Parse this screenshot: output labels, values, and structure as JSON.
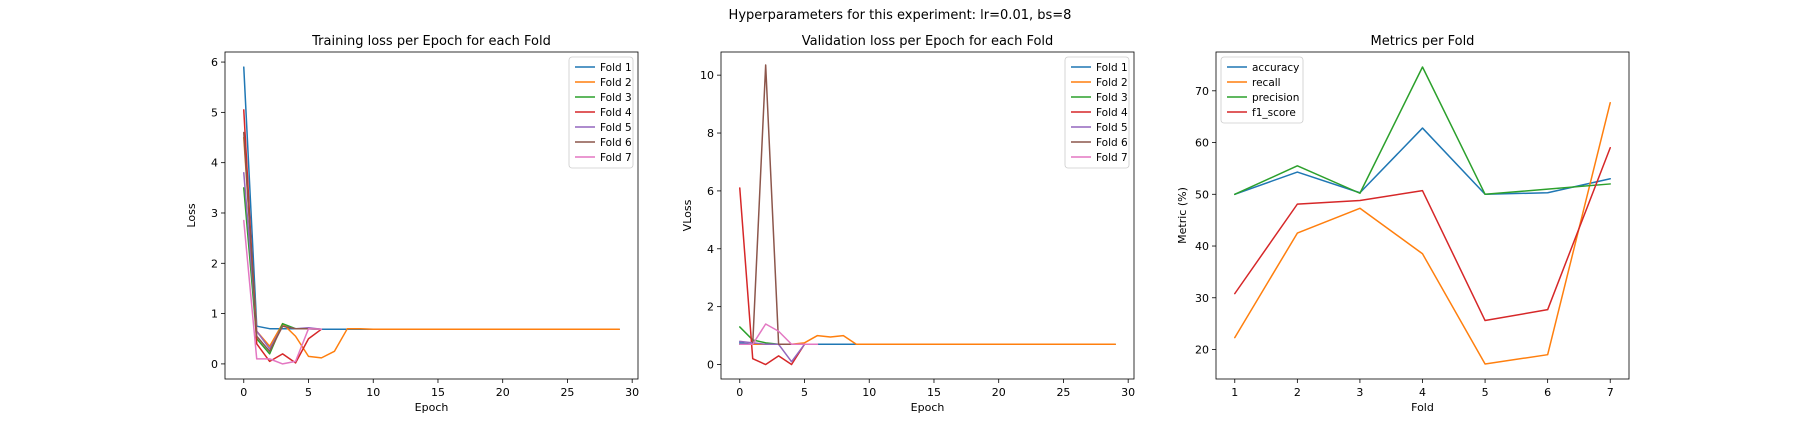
{
  "suptitle": "Hyperparameters for this experiment: lr=0.01, bs=8",
  "colors": {
    "c1": "#1f77b4",
    "c2": "#ff7f0e",
    "c3": "#2ca02c",
    "c4": "#d62728",
    "c5": "#9467bd",
    "c6": "#8c564b",
    "c7": "#e377c2"
  },
  "chart_data": [
    {
      "type": "line",
      "title": "Training loss per Epoch for each Fold",
      "xlabel": "Epoch",
      "ylabel": "Loss",
      "xlim": [
        -1.45,
        30.45
      ],
      "ylim": [
        -0.3,
        6.2
      ],
      "xticks": [
        0,
        5,
        10,
        15,
        20,
        25,
        30
      ],
      "yticks": [
        0,
        1,
        2,
        3,
        4,
        5,
        6
      ],
      "legend": "top-right",
      "series": [
        {
          "name": "Fold 1",
          "color": "#1f77b4",
          "x": [
            0,
            1,
            2,
            3,
            4,
            5,
            6,
            7,
            8,
            9,
            10,
            11,
            12,
            13,
            14,
            15,
            16,
            17,
            18,
            19,
            20,
            21,
            22,
            23,
            24,
            25,
            26,
            27,
            28,
            29
          ],
          "y": [
            5.9,
            0.75,
            0.7,
            0.7,
            0.7,
            0.7,
            0.69,
            0.69,
            0.69,
            0.69,
            0.69,
            0.69,
            0.69,
            0.69,
            0.69,
            0.69,
            0.69,
            0.69,
            0.69,
            0.69,
            0.69,
            0.69,
            0.69,
            0.69,
            0.69,
            0.69,
            0.69,
            0.69,
            0.69,
            0.69
          ]
        },
        {
          "name": "Fold 2",
          "color": "#ff7f0e",
          "x": [
            0,
            1,
            2,
            3,
            4,
            5,
            6,
            7,
            8,
            9,
            10,
            11,
            12,
            13,
            14,
            15,
            16,
            17,
            18,
            19,
            20,
            21,
            22,
            23,
            24,
            25,
            26,
            27,
            28,
            29
          ],
          "y": [
            4.5,
            0.65,
            0.35,
            0.8,
            0.55,
            0.15,
            0.12,
            0.25,
            0.7,
            0.7,
            0.69,
            0.69,
            0.69,
            0.69,
            0.69,
            0.69,
            0.69,
            0.69,
            0.69,
            0.69,
            0.69,
            0.69,
            0.69,
            0.69,
            0.69,
            0.69,
            0.69,
            0.69,
            0.69,
            0.69
          ]
        },
        {
          "name": "Fold 3",
          "color": "#2ca02c",
          "x": [
            0,
            1,
            2,
            3,
            4,
            5,
            6
          ],
          "y": [
            3.5,
            0.5,
            0.2,
            0.8,
            0.7,
            0.7,
            0.69
          ]
        },
        {
          "name": "Fold 4",
          "color": "#d62728",
          "x": [
            0,
            1,
            2,
            3,
            4,
            5,
            6
          ],
          "y": [
            5.05,
            0.4,
            0.05,
            0.2,
            0.02,
            0.5,
            0.69
          ]
        },
        {
          "name": "Fold 5",
          "color": "#9467bd",
          "x": [
            0,
            1,
            2,
            3,
            4,
            5,
            6
          ],
          "y": [
            3.8,
            0.65,
            0.3,
            0.75,
            0.7,
            0.72,
            0.69
          ]
        },
        {
          "name": "Fold 6",
          "color": "#8c564b",
          "x": [
            0,
            1,
            2,
            3,
            4,
            5,
            6
          ],
          "y": [
            4.6,
            0.55,
            0.25,
            0.75,
            0.7,
            0.7,
            0.69
          ]
        },
        {
          "name": "Fold 7",
          "color": "#e377c2",
          "x": [
            0,
            1,
            2,
            3,
            4,
            5,
            6
          ],
          "y": [
            2.85,
            0.1,
            0.1,
            0.0,
            0.05,
            0.7,
            0.69
          ]
        }
      ]
    },
    {
      "type": "line",
      "title": "Validation loss per Epoch for each Fold",
      "xlabel": "Epoch",
      "ylabel": "VLoss",
      "xlim": [
        -1.45,
        30.45
      ],
      "ylim": [
        -0.5,
        10.8
      ],
      "xticks": [
        0,
        5,
        10,
        15,
        20,
        25,
        30
      ],
      "yticks": [
        0,
        2,
        4,
        6,
        8,
        10
      ],
      "legend": "top-right",
      "series": [
        {
          "name": "Fold 1",
          "color": "#1f77b4",
          "x": [
            0,
            1,
            2,
            3,
            4,
            5,
            6,
            7,
            8,
            9,
            10,
            11,
            12,
            13,
            14,
            15,
            16,
            17,
            18,
            19,
            20,
            21,
            22,
            23,
            24,
            25,
            26,
            27,
            28,
            29
          ],
          "y": [
            0.75,
            0.7,
            0.7,
            0.7,
            0.7,
            0.7,
            0.7,
            0.7,
            0.7,
            0.7,
            0.7,
            0.7,
            0.7,
            0.7,
            0.7,
            0.7,
            0.7,
            0.7,
            0.7,
            0.7,
            0.7,
            0.7,
            0.7,
            0.7,
            0.7,
            0.7,
            0.7,
            0.7,
            0.7,
            0.7
          ]
        },
        {
          "name": "Fold 2",
          "color": "#ff7f0e",
          "x": [
            0,
            1,
            2,
            3,
            4,
            5,
            6,
            7,
            8,
            9,
            10,
            11,
            12,
            13,
            14,
            15,
            16,
            17,
            18,
            19,
            20,
            21,
            22,
            23,
            24,
            25,
            26,
            27,
            28,
            29
          ],
          "y": [
            0.7,
            0.7,
            0.7,
            0.7,
            0.7,
            0.75,
            1.0,
            0.95,
            1.0,
            0.7,
            0.7,
            0.7,
            0.7,
            0.7,
            0.7,
            0.7,
            0.7,
            0.7,
            0.7,
            0.7,
            0.7,
            0.7,
            0.7,
            0.7,
            0.7,
            0.7,
            0.7,
            0.7,
            0.7,
            0.7
          ]
        },
        {
          "name": "Fold 3",
          "color": "#2ca02c",
          "x": [
            0,
            1,
            2,
            3,
            4,
            5,
            6
          ],
          "y": [
            1.3,
            0.85,
            0.75,
            0.7,
            0.7,
            0.7,
            0.7
          ]
        },
        {
          "name": "Fold 4",
          "color": "#d62728",
          "x": [
            0,
            1,
            2,
            3,
            4,
            5,
            6
          ],
          "y": [
            6.1,
            0.2,
            0.0,
            0.3,
            0.0,
            0.7,
            0.7
          ]
        },
        {
          "name": "Fold 5",
          "color": "#9467bd",
          "x": [
            0,
            1,
            2,
            3,
            4,
            5,
            6
          ],
          "y": [
            0.8,
            0.75,
            0.7,
            0.7,
            0.1,
            0.7,
            0.7
          ]
        },
        {
          "name": "Fold 6",
          "color": "#8c564b",
          "x": [
            0,
            1,
            2,
            3,
            4,
            5,
            6
          ],
          "y": [
            0.7,
            0.7,
            10.35,
            0.7,
            0.7,
            0.7,
            0.7
          ]
        },
        {
          "name": "Fold 7",
          "color": "#e377c2",
          "x": [
            0,
            1,
            2,
            3,
            4,
            5,
            6
          ],
          "y": [
            0.7,
            0.7,
            1.4,
            1.15,
            0.7,
            0.7,
            0.7
          ]
        }
      ]
    },
    {
      "type": "line",
      "title": "Metrics per Fold",
      "xlabel": "Fold",
      "ylabel": "Metric (%)",
      "xlim": [
        0.7,
        7.3
      ],
      "ylim": [
        14.3,
        77.5
      ],
      "xticks": [
        1,
        2,
        3,
        4,
        5,
        6,
        7
      ],
      "yticks": [
        20,
        30,
        40,
        50,
        60,
        70
      ],
      "legend": "top-left",
      "series": [
        {
          "name": "accuracy",
          "color": "#1f77b4",
          "x": [
            1,
            2,
            3,
            4,
            5,
            6,
            7
          ],
          "y": [
            50.0,
            54.3,
            50.3,
            62.8,
            50.0,
            50.3,
            53.0
          ]
        },
        {
          "name": "recall",
          "color": "#ff7f0e",
          "x": [
            1,
            2,
            3,
            4,
            5,
            6,
            7
          ],
          "y": [
            22.3,
            42.5,
            47.3,
            38.5,
            17.2,
            19.0,
            67.7
          ]
        },
        {
          "name": "precision",
          "color": "#2ca02c",
          "x": [
            1,
            2,
            3,
            4,
            5,
            6,
            7
          ],
          "y": [
            50.0,
            55.5,
            50.2,
            74.6,
            50.0,
            51.0,
            52.0
          ]
        },
        {
          "name": "f1_score",
          "color": "#d62728",
          "x": [
            1,
            2,
            3,
            4,
            5,
            6,
            7
          ],
          "y": [
            30.8,
            48.1,
            48.8,
            50.7,
            25.6,
            27.7,
            59.0
          ]
        }
      ]
    }
  ]
}
